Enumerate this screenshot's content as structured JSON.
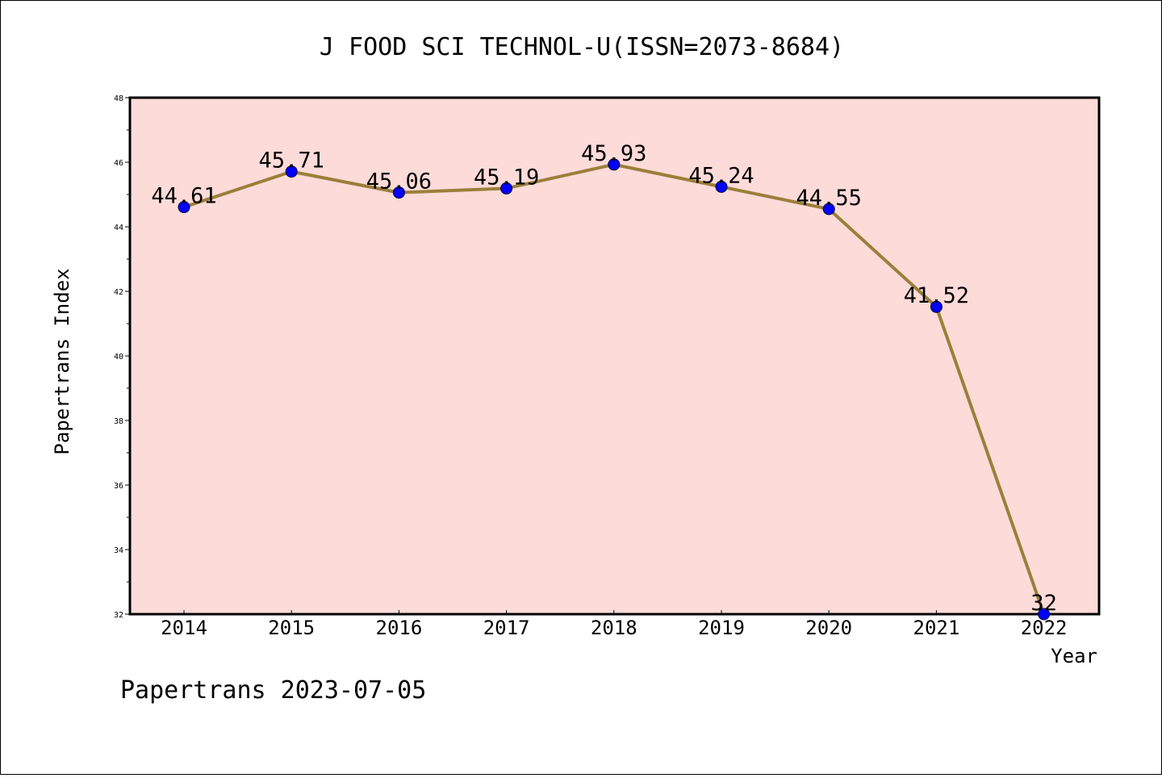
{
  "chart_data": {
    "type": "line",
    "title": "J FOOD SCI TECHNOL-U(ISSN=2073-8684)",
    "xlabel": "Year",
    "ylabel": "Papertrans Index",
    "categories": [
      "2014",
      "2015",
      "2016",
      "2017",
      "2018",
      "2019",
      "2020",
      "2021",
      "2022"
    ],
    "series": [
      {
        "values": [
          44.61,
          45.71,
          45.06,
          45.19,
          45.93,
          45.24,
          44.55,
          41.52,
          32
        ],
        "labels": [
          "44.61",
          "45.71",
          "45.06",
          "45.19",
          "45.93",
          "45.24",
          "44.55",
          "41.52",
          "32"
        ]
      }
    ],
    "ylim": [
      32,
      48
    ],
    "yticks": [
      "32",
      "34",
      "36",
      "38",
      "40",
      "42",
      "44",
      "46",
      "48"
    ],
    "grid": false,
    "plot_background": "#fddbd9",
    "line_color": "#9b7f3a",
    "marker_color": "#0000ff"
  },
  "footer": "Papertrans 2023-07-05"
}
